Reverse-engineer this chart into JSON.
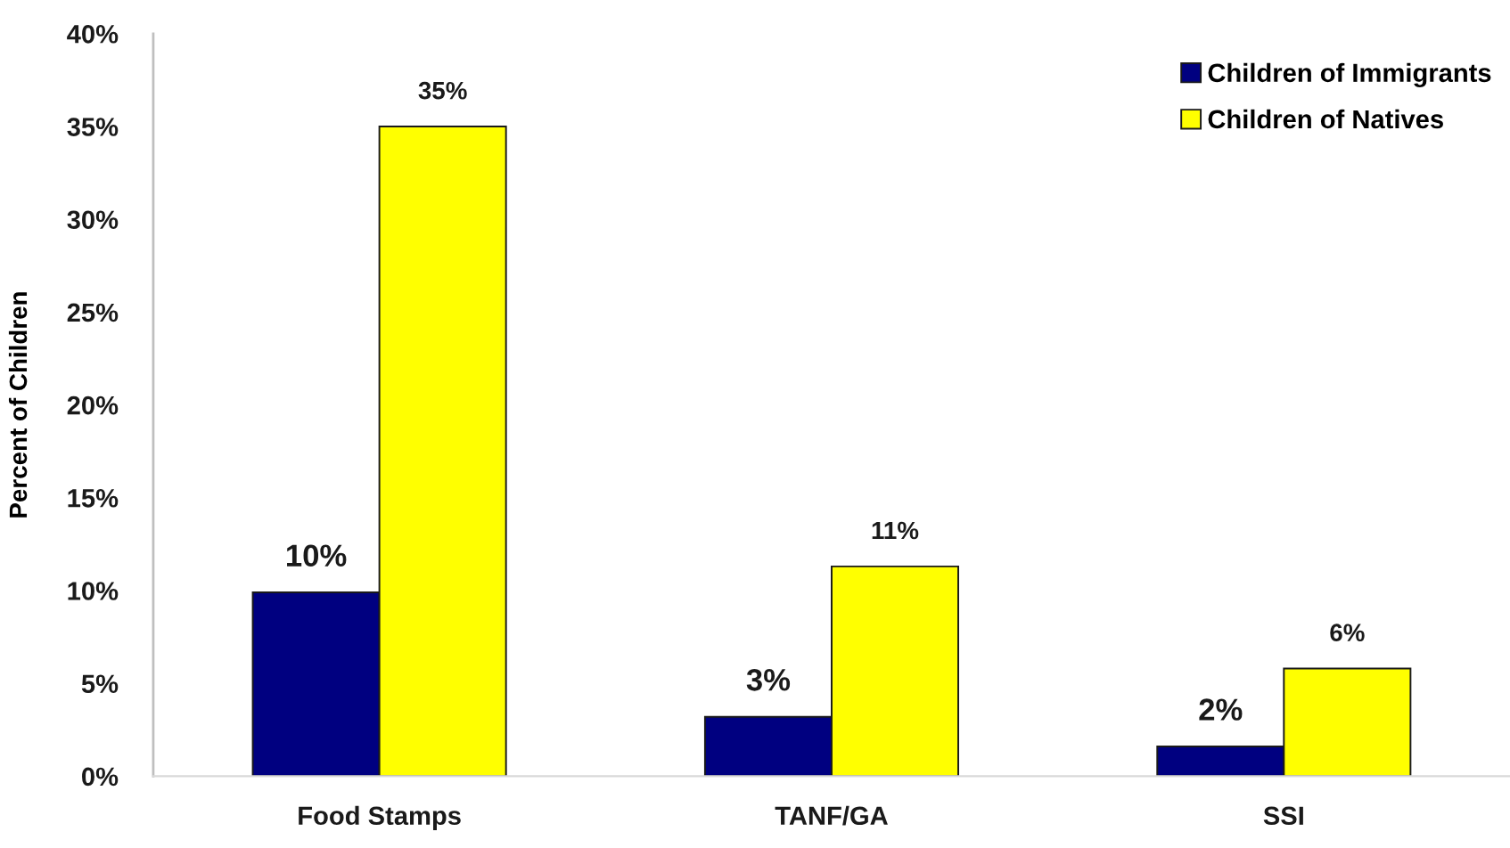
{
  "chart_data": {
    "type": "bar",
    "ylabel": "Percent of Children",
    "categories": [
      "Food Stamps",
      "TANF/GA",
      "SSI"
    ],
    "series": [
      {
        "name": "Children of Immigrants",
        "color": "#000080",
        "values": [
          9.9,
          3.2,
          1.6
        ],
        "value_labels": [
          "10%",
          "3%",
          "2%"
        ]
      },
      {
        "name": "Children of Natives",
        "color": "#ffff00",
        "values": [
          35,
          11.3,
          5.8
        ],
        "value_labels": [
          "35%",
          "11%",
          "6%"
        ]
      }
    ],
    "ylim": [
      0,
      40
    ],
    "yticks": [
      {
        "value": 0,
        "label": "0%"
      },
      {
        "value": 5,
        "label": "5%"
      },
      {
        "value": 10,
        "label": "10%"
      },
      {
        "value": 15,
        "label": "15%"
      },
      {
        "value": 20,
        "label": "20%"
      },
      {
        "value": 25,
        "label": "25%"
      },
      {
        "value": 30,
        "label": "30%"
      },
      {
        "value": 35,
        "label": "35%"
      },
      {
        "value": 40,
        "label": "40%"
      }
    ],
    "legend": "top right"
  }
}
